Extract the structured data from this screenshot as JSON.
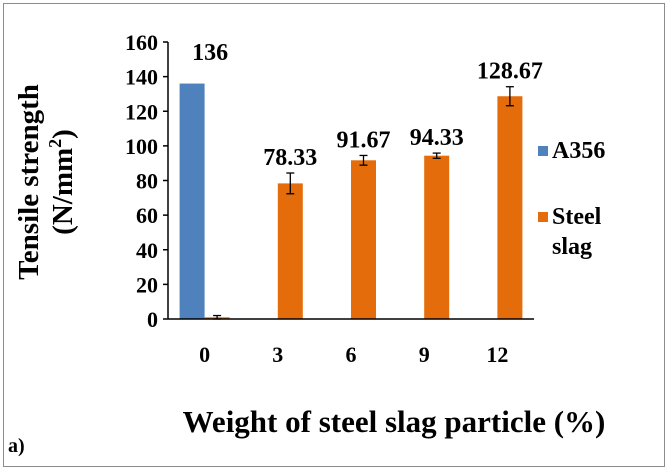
{
  "chart_data": {
    "type": "bar",
    "categories": [
      "0",
      "3",
      "6",
      "9",
      "12"
    ],
    "series": [
      {
        "name": "A356",
        "color": "#4f81bd",
        "values": [
          136,
          0,
          0,
          0,
          0
        ],
        "errors": [
          0,
          0,
          0,
          0,
          0
        ]
      },
      {
        "name": "Steel slag",
        "color": "#e46c0a",
        "values": [
          1,
          78.33,
          91.67,
          94.33,
          128.67
        ],
        "errors": [
          1,
          6,
          2.8,
          1.5,
          5.5
        ]
      }
    ],
    "data_labels": [
      "136",
      "78.33",
      "91.67",
      "94.33",
      "128.67"
    ],
    "y_ticks": [
      "0",
      "20",
      "40",
      "60",
      "80",
      "100",
      "120",
      "140",
      "160"
    ],
    "ylim": [
      0,
      160
    ],
    "ylabel_line1": "Tensile strength",
    "ylabel_line2_prefix": "(N/mm",
    "ylabel_sup": "2",
    "ylabel_line2_suffix": ")",
    "xlabel": "Weight of steel slag particle (%)",
    "legend": {
      "placement": "right",
      "a356": "A356",
      "steel_line1": "Steel",
      "steel_line2": "slag"
    },
    "panel_label": "a)",
    "grid": false
  }
}
